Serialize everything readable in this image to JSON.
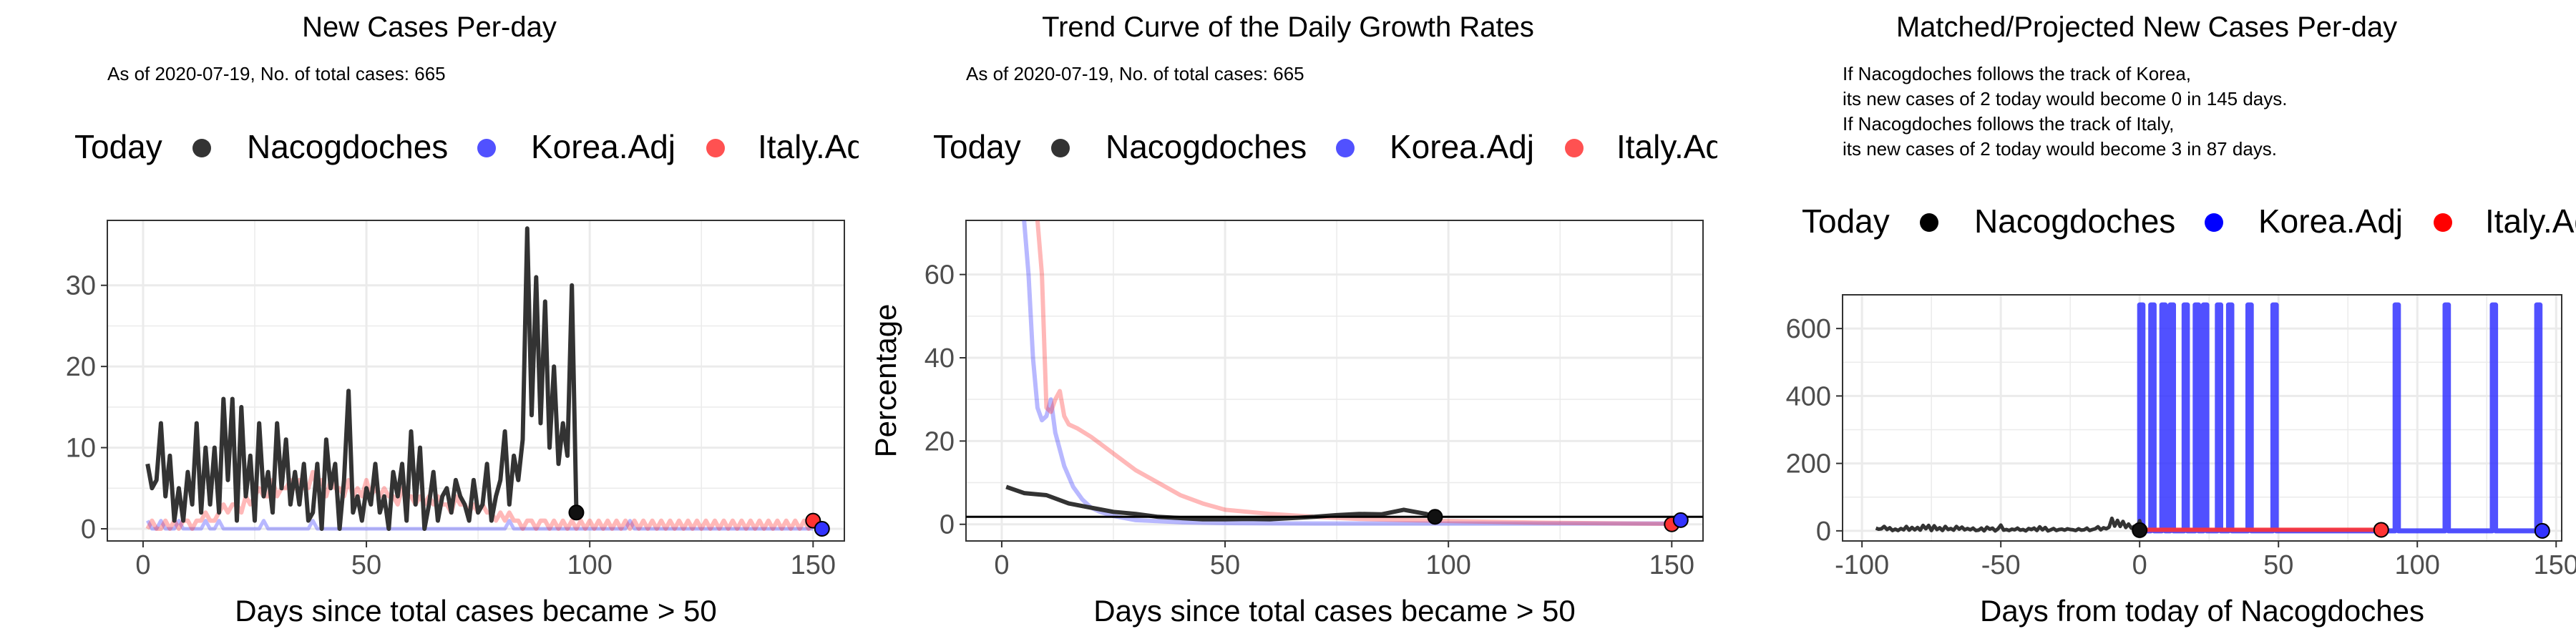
{
  "colors": {
    "nacogdoches": "#333333",
    "korea": "#3333ff",
    "italy": "#ff3333",
    "grid": "#ebebeb",
    "today_dot": "#111111"
  },
  "chart_data": [
    {
      "type": "line",
      "title": "New Cases Per-day",
      "subtitle": "As of 2020-07-19, No. of total cases: 665",
      "xlabel": "Days since total cases became > 50",
      "ylabel": "",
      "xlim": [
        -8,
        157
      ],
      "ylim": [
        -1.5,
        38
      ],
      "xticks": [
        0,
        50,
        100,
        150
      ],
      "yticks": [
        0,
        10,
        20,
        30
      ],
      "legend": {
        "position": "top",
        "items": [
          "Today",
          "Nacogdoches",
          "Korea.Adj",
          "Italy.Adj"
        ]
      },
      "series": [
        {
          "name": "Nacogdoches",
          "start_x": 1,
          "values": [
            8,
            5,
            6,
            13,
            4,
            9,
            1,
            5,
            1,
            7,
            3,
            13,
            2,
            10,
            3,
            10,
            2,
            16,
            6,
            16,
            1,
            15,
            4,
            9,
            1,
            13,
            4,
            7,
            2,
            13,
            5,
            11,
            3,
            7,
            3,
            8,
            1,
            2,
            8,
            0,
            11,
            5,
            8,
            0,
            6,
            17,
            2,
            4,
            1,
            5,
            3,
            8,
            2,
            4,
            0,
            7,
            4,
            8,
            1,
            12,
            3,
            10,
            0,
            3,
            7,
            1,
            4,
            5,
            2,
            6,
            4,
            3,
            1,
            6,
            2,
            3,
            8,
            1,
            4,
            6,
            12,
            3,
            9,
            6,
            11,
            37,
            14,
            31,
            13,
            28,
            10,
            20,
            8,
            13,
            9,
            30,
            2
          ]
        },
        {
          "name": "Korea.Adj",
          "start_x": 1,
          "values": [
            1,
            0,
            0,
            1,
            0,
            0,
            0,
            1,
            0,
            0,
            0,
            0,
            0,
            1,
            0,
            0,
            1,
            0,
            0,
            0,
            0,
            0,
            0,
            0,
            0,
            0,
            1,
            0,
            0,
            0,
            0,
            0,
            0,
            0,
            0,
            0,
            0,
            1,
            0,
            0,
            0,
            0,
            0,
            0,
            0,
            0,
            0,
            0,
            0,
            0,
            0,
            0,
            0,
            0,
            0,
            0,
            0,
            0,
            0,
            0,
            0,
            0,
            0,
            0,
            0,
            0,
            0,
            0,
            0,
            0,
            0,
            0,
            0,
            0,
            0,
            0,
            0,
            0,
            0,
            0,
            0,
            1,
            0,
            0,
            0,
            0,
            0,
            0,
            0,
            0,
            0,
            0,
            0,
            0,
            0,
            0,
            0,
            0,
            0,
            0,
            0,
            0,
            0,
            0,
            0,
            0,
            0,
            0,
            1,
            0,
            0,
            0,
            0,
            0,
            0,
            0,
            0,
            0,
            0,
            0,
            0,
            0,
            0,
            0,
            0,
            0,
            0,
            0,
            0,
            0,
            0,
            0,
            0,
            0,
            0,
            0,
            0,
            0,
            0,
            0,
            0,
            0,
            0,
            0,
            0,
            0,
            0,
            0,
            0,
            0
          ]
        },
        {
          "name": "Italy.Adj",
          "start_x": 1,
          "values": [
            0,
            1,
            0,
            0,
            1,
            0,
            1,
            0,
            1,
            1,
            0,
            1,
            1,
            2,
            1,
            1,
            2,
            3,
            2,
            3,
            3,
            2,
            4,
            3,
            4,
            5,
            4,
            4,
            6,
            4,
            5,
            5,
            6,
            5,
            6,
            5,
            5,
            7,
            5,
            6,
            4,
            6,
            5,
            5,
            4,
            6,
            4,
            5,
            4,
            6,
            4,
            5,
            4,
            5,
            4,
            4,
            3,
            5,
            4,
            4,
            3,
            4,
            3,
            4,
            3,
            4,
            3,
            3,
            2,
            4,
            3,
            3,
            2,
            3,
            2,
            3,
            2,
            2,
            1,
            2,
            1,
            2,
            1,
            1,
            0,
            1,
            1,
            0,
            1,
            1,
            0,
            1,
            0,
            1,
            0,
            1,
            0,
            1,
            0,
            1,
            0,
            1,
            0,
            1,
            0,
            1,
            0,
            1,
            0,
            1,
            0,
            1,
            0,
            1,
            0,
            1,
            0,
            1,
            0,
            1,
            0,
            1,
            0,
            1,
            0,
            1,
            0,
            1,
            0,
            1,
            0,
            1,
            0,
            1,
            0,
            1,
            0,
            1,
            0,
            1,
            0,
            1,
            0,
            1,
            0,
            1,
            0,
            1,
            0,
            1
          ]
        }
      ],
      "today_points": [
        {
          "series": "Nacogdoches",
          "x": 97,
          "y": 2
        },
        {
          "series": "Italy.Adj",
          "x": 150,
          "y": 1
        },
        {
          "series": "Korea.Adj",
          "x": 152,
          "y": 0
        }
      ]
    },
    {
      "type": "line",
      "title": "Trend Curve of the Daily Growth Rates",
      "subtitle": "As of 2020-07-19, No. of total cases: 665",
      "xlabel": "Days since total cases became > 50",
      "ylabel": "Percentage",
      "xlim": [
        -8,
        157
      ],
      "ylim": [
        -4,
        73
      ],
      "xticks": [
        0,
        50,
        100,
        150
      ],
      "yticks": [
        0,
        20,
        40,
        60
      ],
      "hline": 1.8,
      "legend": {
        "position": "top",
        "items": [
          "Today",
          "Nacogdoches",
          "Korea.Adj",
          "Italy.Adj"
        ]
      },
      "series": [
        {
          "name": "Nacogdoches",
          "x": [
            1,
            5,
            10,
            15,
            20,
            25,
            30,
            35,
            40,
            45,
            50,
            55,
            60,
            65,
            70,
            75,
            80,
            85,
            90,
            95,
            97
          ],
          "y": [
            9,
            7.5,
            7,
            5,
            4,
            3,
            2.5,
            1.8,
            1.5,
            1.2,
            1.2,
            1.3,
            1.2,
            1.5,
            1.8,
            2.2,
            2.5,
            2.4,
            3.5,
            2.5,
            1.8
          ]
        },
        {
          "name": "Korea.Adj",
          "x": [
            5,
            6,
            7,
            8,
            9,
            10,
            11,
            12,
            14,
            16,
            18,
            20,
            22,
            25,
            30,
            40,
            50,
            70,
            90,
            110,
            130,
            150,
            152
          ],
          "y": [
            73,
            60,
            40,
            28,
            25,
            26,
            30,
            22,
            14,
            9,
            6,
            4,
            3,
            2,
            1,
            0.5,
            0.3,
            0.2,
            0.2,
            0.2,
            0.2,
            0.2,
            1
          ]
        },
        {
          "name": "Italy.Adj",
          "x": [
            8,
            9,
            10,
            11,
            12,
            13,
            14,
            15,
            17,
            20,
            25,
            30,
            35,
            40,
            45,
            50,
            60,
            70,
            80,
            90,
            100,
            110,
            120,
            130,
            140,
            150
          ],
          "y": [
            73,
            60,
            28,
            27,
            30,
            32,
            26,
            24,
            23,
            21,
            17,
            13,
            10,
            7,
            5,
            3.5,
            2.5,
            1.8,
            1.3,
            1,
            0.8,
            0.6,
            0.4,
            0.3,
            0.2,
            0.1
          ]
        }
      ],
      "today_points": [
        {
          "series": "Nacogdoches",
          "x": 97,
          "y": 1.8
        },
        {
          "series": "Italy.Adj",
          "x": 150,
          "y": 0
        },
        {
          "series": "Korea.Adj",
          "x": 152,
          "y": 1
        }
      ]
    },
    {
      "type": "line",
      "title": "Matched/Projected New Cases Per-day",
      "subtitle": "If Nacogdoches follows the track of Korea,\nits new cases of 2 today would become 0 in 145 days.\nIf Nacogdoches follows the track of Italy,\nits new cases of 2 today would become 3 in 87 days.",
      "xlabel": "Days from today of Nacogdoches",
      "ylabel": "",
      "xlim": [
        -107,
        152
      ],
      "ylim": [
        -30,
        700
      ],
      "xticks": [
        -100,
        -50,
        0,
        50,
        100,
        150
      ],
      "yticks": [
        0,
        200,
        400,
        600
      ],
      "legend": {
        "position": "top",
        "items": [
          "Today",
          "Nacogdoches",
          "Korea.Adj",
          "Italy.Adj"
        ]
      },
      "series": [
        {
          "name": "Nacogdoches",
          "x_start": -95,
          "values": [
            8,
            5,
            6,
            13,
            4,
            9,
            1,
            5,
            1,
            7,
            3,
            13,
            2,
            10,
            3,
            10,
            2,
            16,
            6,
            16,
            1,
            15,
            4,
            9,
            1,
            13,
            4,
            7,
            2,
            13,
            5,
            11,
            3,
            7,
            3,
            8,
            1,
            2,
            8,
            0,
            11,
            5,
            8,
            0,
            6,
            17,
            2,
            4,
            1,
            5,
            3,
            8,
            2,
            4,
            0,
            7,
            4,
            8,
            1,
            12,
            3,
            10,
            0,
            3,
            7,
            1,
            4,
            5,
            2,
            6,
            4,
            3,
            1,
            6,
            2,
            3,
            8,
            1,
            4,
            6,
            12,
            3,
            9,
            6,
            11,
            37,
            14,
            31,
            13,
            28,
            10,
            20,
            8,
            13,
            9,
            30,
            2
          ]
        },
        {
          "name": "Korea.Adj",
          "spikes_x": [
            0,
            4,
            8,
            11,
            16,
            20,
            23,
            28,
            32,
            39,
            48,
            92,
            110,
            127,
            143
          ],
          "spike_value": 670,
          "range": [
            0,
            145
          ],
          "end_value": 0
        },
        {
          "name": "Italy.Adj",
          "x": [
            0,
            20,
            40,
            60,
            80,
            87
          ],
          "y": [
            3,
            3,
            3,
            3,
            3,
            3
          ]
        }
      ],
      "today_points": [
        {
          "series": "Nacogdoches",
          "x": 0,
          "y": 2
        },
        {
          "series": "Italy.Adj",
          "x": 87,
          "y": 3
        },
        {
          "series": "Korea.Adj",
          "x": 145,
          "y": 0
        }
      ]
    }
  ]
}
